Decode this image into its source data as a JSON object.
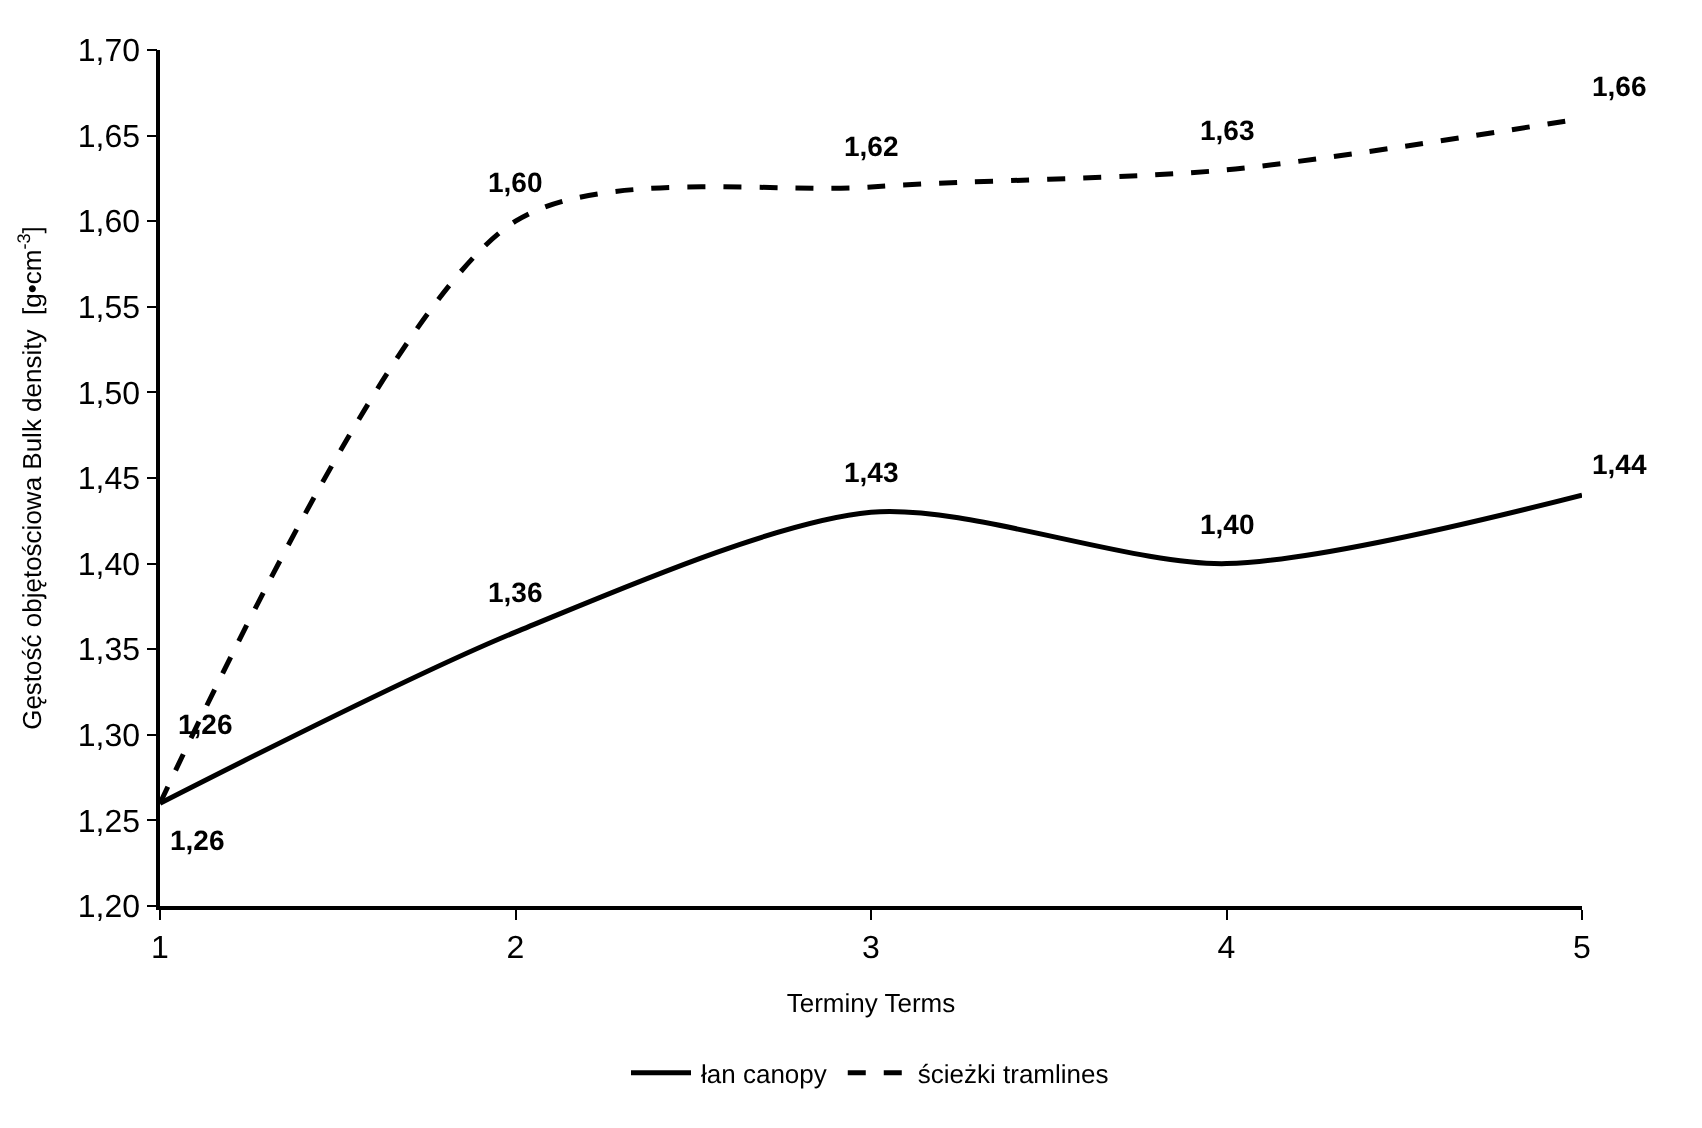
{
  "chart_data": {
    "type": "line",
    "xlabel": "Terminy Terms",
    "ylabel": "Gęstość objętościowa Bulk density  [g•cm$^{-3}$]",
    "x": [
      1,
      2,
      3,
      4,
      5
    ],
    "series": [
      {
        "name": "łan canopy",
        "color": "#000000",
        "line_style": "solid",
        "values": [
          1.26,
          1.36,
          1.43,
          1.4,
          1.44
        ],
        "value_labels": [
          "1,26",
          "1,36",
          "1,43",
          "1,40",
          "1,44"
        ]
      },
      {
        "name": "ścieżki tramlines",
        "color": "#000000",
        "line_style": "dashed",
        "values": [
          1.26,
          1.6,
          1.62,
          1.63,
          1.66
        ],
        "value_labels": [
          "1,26",
          "1,60",
          "1,62",
          "1,63",
          "1,66"
        ]
      }
    ],
    "xlim": [
      1,
      5
    ],
    "xticks": [
      1,
      2,
      3,
      4,
      5
    ],
    "ylim": [
      1.2,
      1.7
    ],
    "yticks": [
      {
        "value": 1.2,
        "label": "1,20"
      },
      {
        "value": 1.25,
        "label": "1,25"
      },
      {
        "value": 1.3,
        "label": "1,30"
      },
      {
        "value": 1.35,
        "label": "1,35"
      },
      {
        "value": 1.4,
        "label": "1,40"
      },
      {
        "value": 1.45,
        "label": "1,45"
      },
      {
        "value": 1.5,
        "label": "1,50"
      },
      {
        "value": 1.55,
        "label": "1,55"
      },
      {
        "value": 1.6,
        "label": "1,60"
      },
      {
        "value": 1.65,
        "label": "1,65"
      },
      {
        "value": 1.7,
        "label": "1,70"
      }
    ],
    "grid": false,
    "legend": "bottom",
    "marker": "none"
  }
}
